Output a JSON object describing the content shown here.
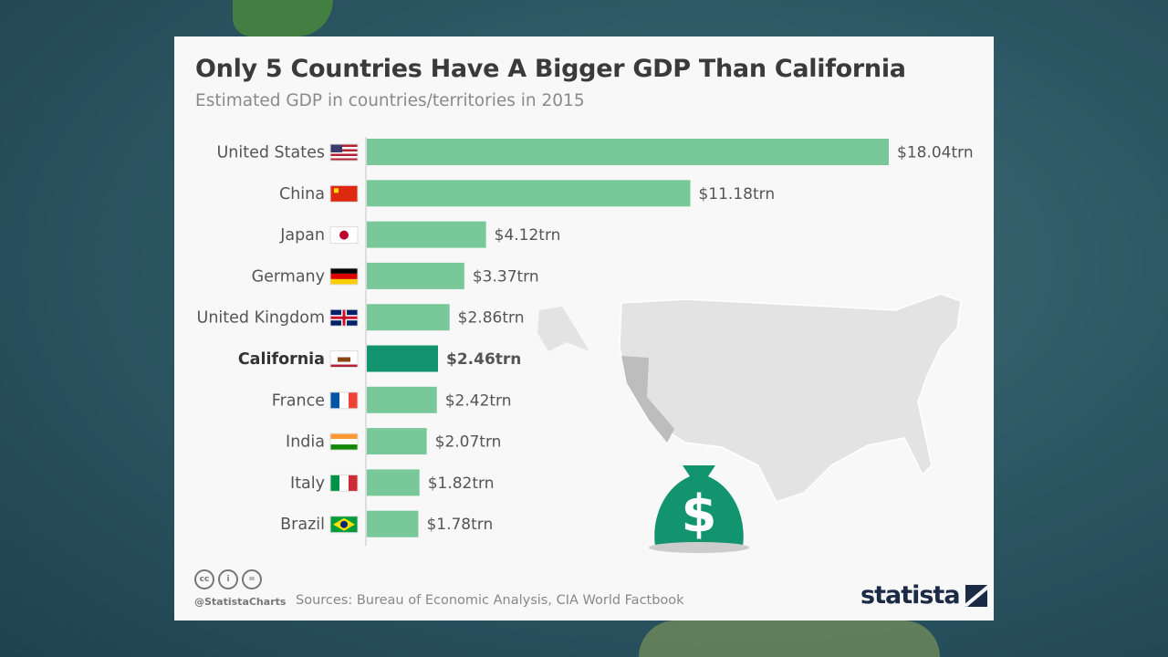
{
  "chart_data": {
    "type": "bar",
    "orientation": "horizontal",
    "title": "Only 5 Countries Have A Bigger GDP Than California",
    "subtitle": "Estimated GDP in countries/territories in 2015",
    "categories": [
      "United States",
      "China",
      "Japan",
      "Germany",
      "United Kingdom",
      "California",
      "France",
      "India",
      "Italy",
      "Brazil"
    ],
    "values": [
      18.04,
      11.18,
      4.12,
      3.37,
      2.86,
      2.46,
      2.42,
      2.07,
      1.82,
      1.78
    ],
    "value_labels": [
      "$18.04trn",
      "$11.18trn",
      "$4.12trn",
      "$3.37trn",
      "$2.86trn",
      "$2.46trn",
      "$2.42trn",
      "$2.07trn",
      "$1.82trn",
      "$1.78trn"
    ],
    "highlight": "California",
    "unit": "trillion USD",
    "xlim": [
      0,
      18.04
    ],
    "grid": false,
    "colors": {
      "bar": "#79c89a",
      "highlight": "#12956e"
    }
  },
  "footer": {
    "handle": "@StatistaCharts",
    "sources": "Sources: Bureau of Economic Analysis, CIA World Factbook",
    "logo": "statista",
    "license_icons": [
      "cc",
      "by",
      "nd"
    ]
  }
}
